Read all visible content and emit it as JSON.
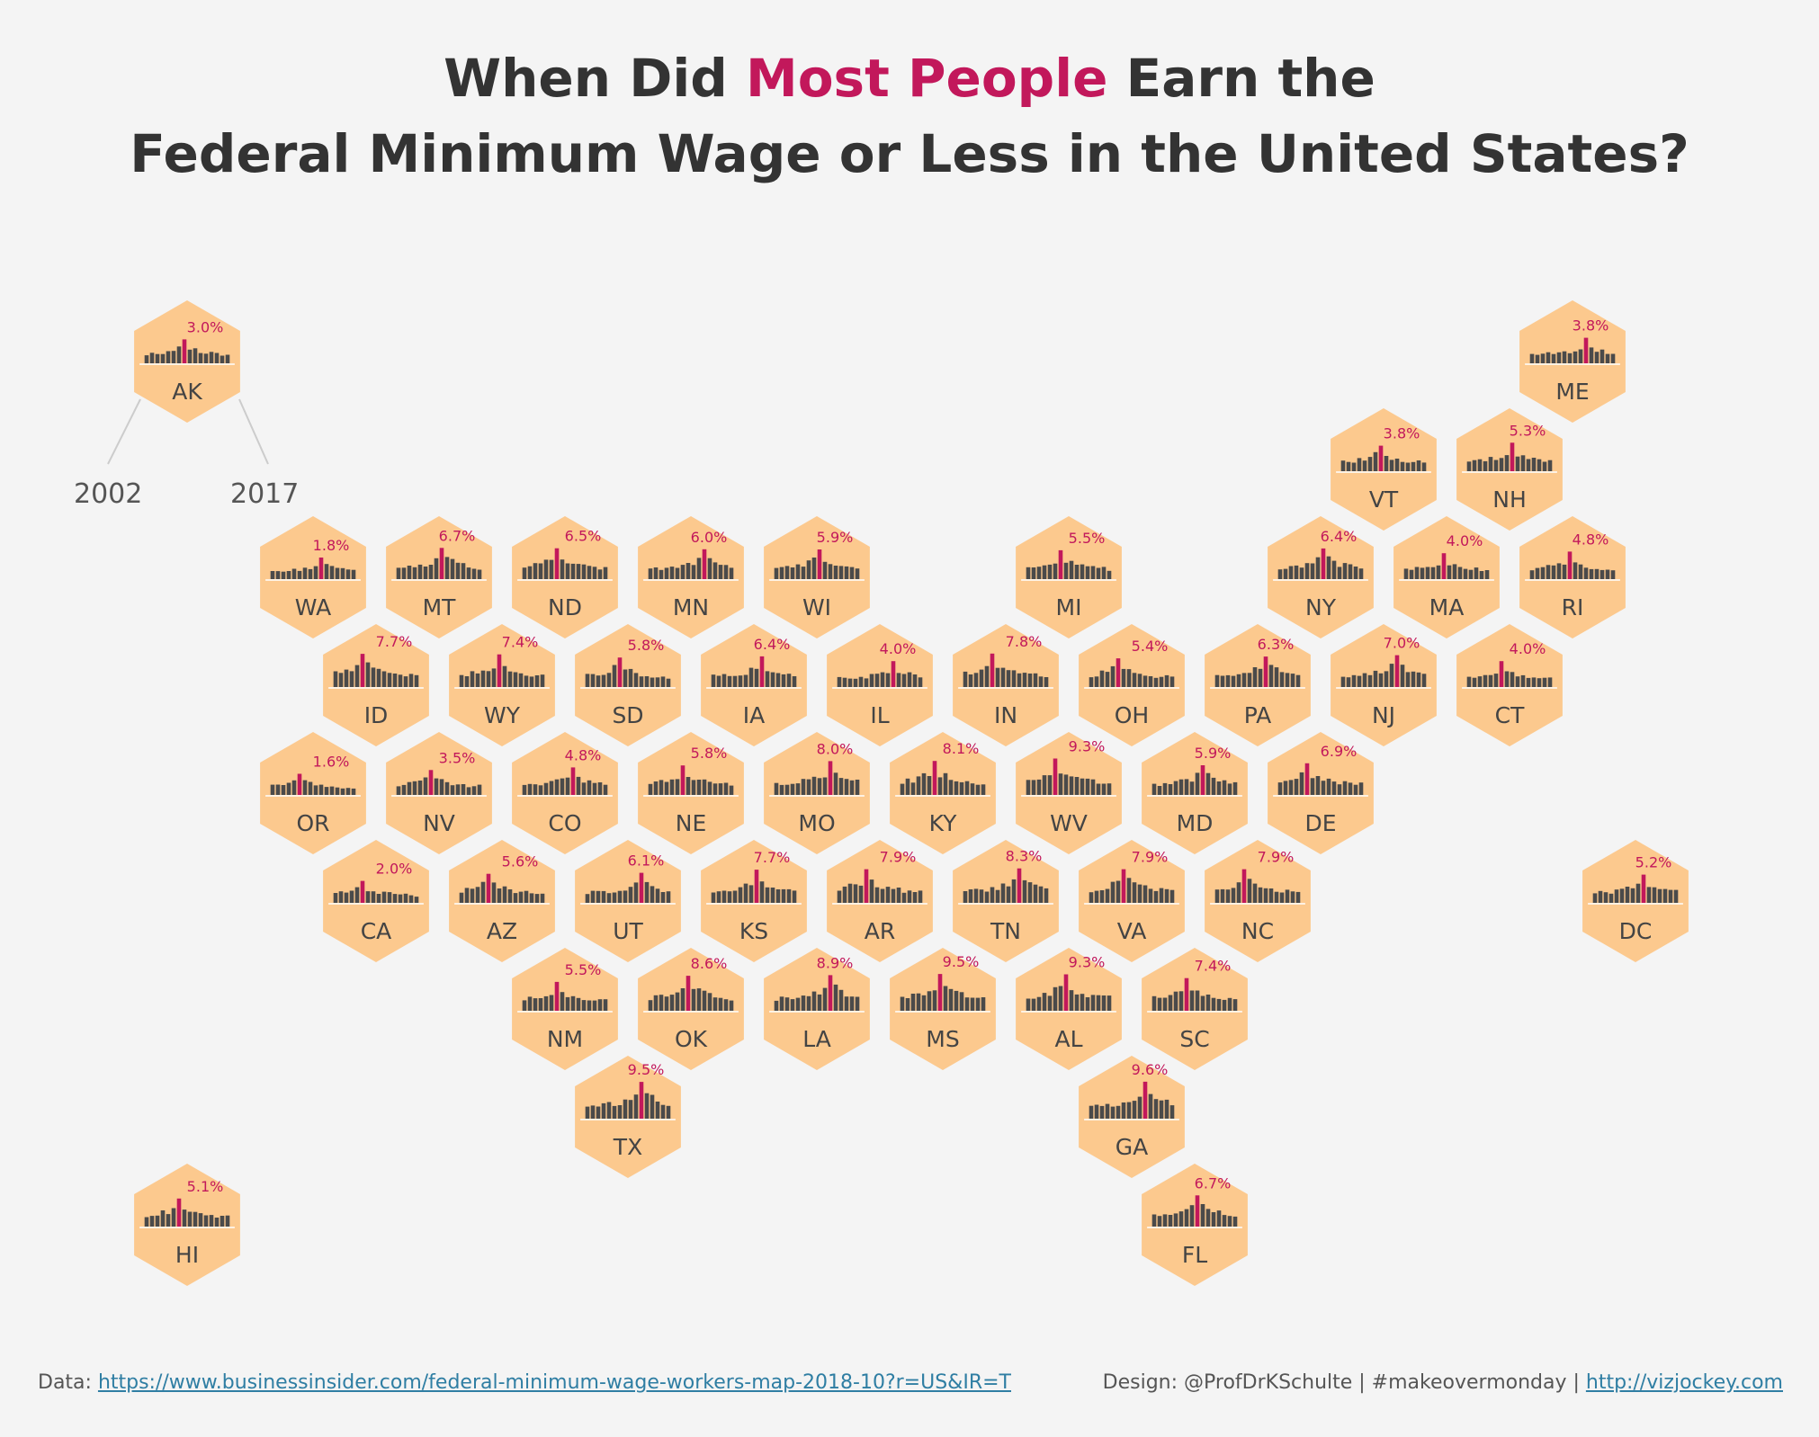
{
  "title": {
    "line1_pre": "When Did ",
    "line1_highlight": "Most People",
    "line1_post": " Earn the",
    "line2": "Federal Minimum Wage or Less in the United States?"
  },
  "legend": {
    "start_year": "2002",
    "end_year": "2017"
  },
  "colors": {
    "hex": "#fcc98e",
    "bar": "#4a4a4a",
    "highlight": "#c2185b",
    "missing": "#ffffff"
  },
  "footer": {
    "data_label": "Data: ",
    "data_url": "https://www.businessinsider.com/federal-minimum-wage-workers-map-2018-10?r=US&IR=T",
    "design_label": "Design: @ProfDrKSchulte | #makeovermonday | ",
    "design_url": "http://vizjockey.com"
  },
  "chart_data": {
    "type": "hex-map-sparkbars",
    "years": [
      2002,
      2017
    ],
    "states": [
      {
        "code": "AK",
        "peak": "3.0%",
        "col": 0,
        "row": 0
      },
      {
        "code": "ME",
        "peak": "3.8%",
        "col": 11,
        "row": 0
      },
      {
        "code": "VT",
        "peak": "3.8%",
        "col": 9.5,
        "row": 1
      },
      {
        "code": "NH",
        "peak": "5.3%",
        "col": 10.5,
        "row": 1
      },
      {
        "code": "WA",
        "peak": "1.8%",
        "col": 1,
        "row": 2
      },
      {
        "code": "MT",
        "peak": "6.7%",
        "col": 2,
        "row": 2
      },
      {
        "code": "ND",
        "peak": "6.5%",
        "col": 3,
        "row": 2
      },
      {
        "code": "MN",
        "peak": "6.0%",
        "col": 4,
        "row": 2
      },
      {
        "code": "WI",
        "peak": "5.9%",
        "col": 5,
        "row": 2
      },
      {
        "code": "MI",
        "peak": "5.5%",
        "col": 7,
        "row": 2
      },
      {
        "code": "NY",
        "peak": "6.4%",
        "col": 9,
        "row": 2
      },
      {
        "code": "MA",
        "peak": "4.0%",
        "col": 10,
        "row": 2
      },
      {
        "code": "RI",
        "peak": "4.8%",
        "col": 11,
        "row": 2
      },
      {
        "code": "ID",
        "peak": "7.7%",
        "col": 1.5,
        "row": 3
      },
      {
        "code": "WY",
        "peak": "7.4%",
        "col": 2.5,
        "row": 3
      },
      {
        "code": "SD",
        "peak": "5.8%",
        "col": 3.5,
        "row": 3
      },
      {
        "code": "IA",
        "peak": "6.4%",
        "col": 4.5,
        "row": 3
      },
      {
        "code": "IL",
        "peak": "4.0%",
        "col": 5.5,
        "row": 3
      },
      {
        "code": "IN",
        "peak": "7.8%",
        "col": 6.5,
        "row": 3
      },
      {
        "code": "OH",
        "peak": "5.4%",
        "col": 7.5,
        "row": 3
      },
      {
        "code": "PA",
        "peak": "6.3%",
        "col": 8.5,
        "row": 3
      },
      {
        "code": "NJ",
        "peak": "7.0%",
        "col": 9.5,
        "row": 3
      },
      {
        "code": "CT",
        "peak": "4.0%",
        "col": 10.5,
        "row": 3
      },
      {
        "code": "OR",
        "peak": "1.6%",
        "col": 1,
        "row": 4
      },
      {
        "code": "NV",
        "peak": "3.5%",
        "col": 2,
        "row": 4
      },
      {
        "code": "CO",
        "peak": "4.8%",
        "col": 3,
        "row": 4
      },
      {
        "code": "NE",
        "peak": "5.8%",
        "col": 4,
        "row": 4
      },
      {
        "code": "MO",
        "peak": "8.0%",
        "col": 5,
        "row": 4
      },
      {
        "code": "KY",
        "peak": "8.1%",
        "col": 6,
        "row": 4
      },
      {
        "code": "WV",
        "peak": "9.3%",
        "col": 7,
        "row": 4
      },
      {
        "code": "MD",
        "peak": "5.9%",
        "col": 8,
        "row": 4
      },
      {
        "code": "DE",
        "peak": "6.9%",
        "col": 9,
        "row": 4
      },
      {
        "code": "CA",
        "peak": "2.0%",
        "col": 1.5,
        "row": 5
      },
      {
        "code": "AZ",
        "peak": "5.6%",
        "col": 2.5,
        "row": 5
      },
      {
        "code": "UT",
        "peak": "6.1%",
        "col": 3.5,
        "row": 5
      },
      {
        "code": "KS",
        "peak": "7.7%",
        "col": 4.5,
        "row": 5
      },
      {
        "code": "AR",
        "peak": "7.9%",
        "col": 5.5,
        "row": 5
      },
      {
        "code": "TN",
        "peak": "8.3%",
        "col": 6.5,
        "row": 5
      },
      {
        "code": "VA",
        "peak": "7.9%",
        "col": 7.5,
        "row": 5
      },
      {
        "code": "NC",
        "peak": "7.9%",
        "col": 8.5,
        "row": 5
      },
      {
        "code": "DC",
        "peak": "5.2%",
        "col": 11.5,
        "row": 5
      },
      {
        "code": "NM",
        "peak": "5.5%",
        "col": 3,
        "row": 6
      },
      {
        "code": "OK",
        "peak": "8.6%",
        "col": 4,
        "row": 6
      },
      {
        "code": "LA",
        "peak": "8.9%",
        "col": 5,
        "row": 6
      },
      {
        "code": "MS",
        "peak": "9.5%",
        "col": 6,
        "row": 6
      },
      {
        "code": "AL",
        "peak": "9.3%",
        "col": 7,
        "row": 6
      },
      {
        "code": "SC",
        "peak": "7.4%",
        "col": 8,
        "row": 6
      },
      {
        "code": "TX",
        "peak": "9.5%",
        "col": 3.5,
        "row": 7
      },
      {
        "code": "GA",
        "peak": "9.6%",
        "col": 7.5,
        "row": 7
      },
      {
        "code": "HI",
        "peak": "5.1%",
        "col": 0,
        "row": 8
      },
      {
        "code": "FL",
        "peak": "6.7%",
        "col": 8,
        "row": 8
      }
    ]
  }
}
